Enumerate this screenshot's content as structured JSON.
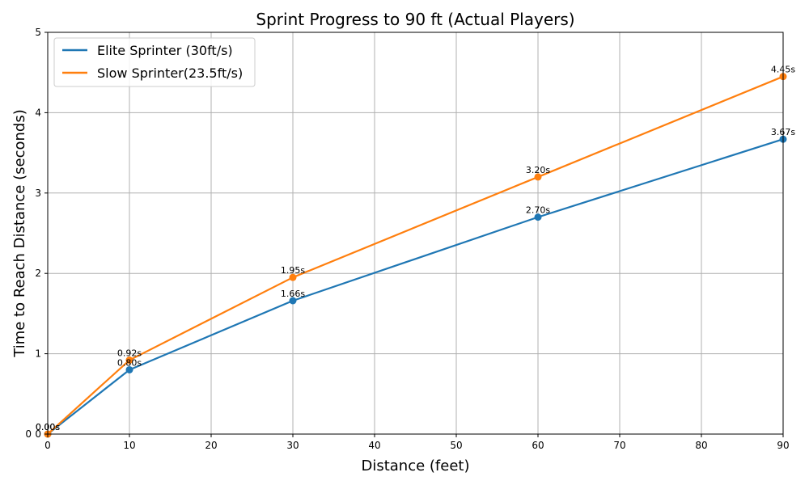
{
  "chart_data": {
    "type": "line",
    "title": "Sprint Progress to 90 ft (Actual Players)",
    "xlabel": "Distance (feet)",
    "ylabel": "Time to Reach Distance (seconds)",
    "xlim": [
      0,
      90
    ],
    "ylim": [
      0,
      5
    ],
    "xticks": [
      "0",
      "10",
      "20",
      "30",
      "40",
      "50",
      "60",
      "70",
      "80",
      "90"
    ],
    "yticks": [
      "0",
      "1",
      "2",
      "3",
      "4",
      "5"
    ],
    "extra_ytick": "0",
    "grid": true,
    "legend_position": "top-left",
    "series": [
      {
        "name": "Elite Sprinter (30ft/s)",
        "color": "#1f77b4",
        "x": [
          0,
          10,
          30,
          60,
          90
        ],
        "values": [
          0.0,
          0.8,
          1.66,
          2.7,
          3.67
        ],
        "labels": [
          "0.00s",
          "0.80s",
          "1.66s",
          "2.70s",
          "3.67s"
        ]
      },
      {
        "name": "Slow Sprinter(23.5ft/s)",
        "color": "#ff7f0e",
        "x": [
          0,
          10,
          30,
          60,
          90
        ],
        "values": [
          0.0,
          0.92,
          1.95,
          3.2,
          4.45
        ],
        "labels": [
          "0.00s",
          "0.92s",
          "1.95s",
          "3.20s",
          "4.45s"
        ]
      }
    ]
  }
}
